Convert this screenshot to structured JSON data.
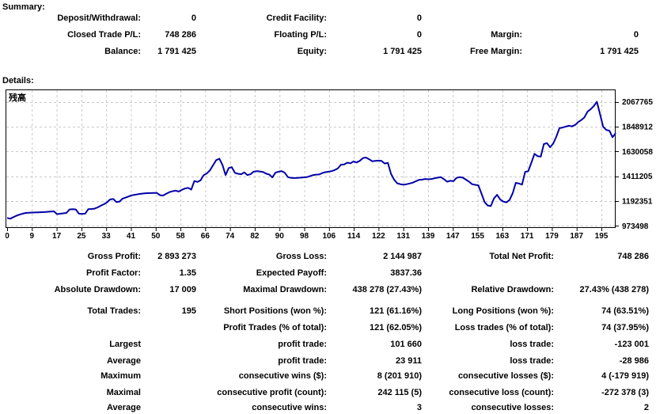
{
  "headings": {
    "summary": "Summary:",
    "details": "Details:"
  },
  "summary": {
    "rows": [
      {
        "c1l": "Deposit/Withdrawal:",
        "c1v": "0",
        "c2l": "Credit Facility:",
        "c2v": "0",
        "c3l": "",
        "c3v": ""
      },
      {
        "c1l": "Closed Trade P/L:",
        "c1v": "748 286",
        "c2l": "Floating P/L:",
        "c2v": "0",
        "c3l": "Margin:",
        "c3v": "0"
      },
      {
        "c1l": "Balance:",
        "c1v": "1 791 425",
        "c2l": "Equity:",
        "c2v": "1 791 425",
        "c3l": "Free Margin:",
        "c3v": "1 791 425"
      }
    ]
  },
  "details": {
    "rows": [
      {
        "c1l": "Gross Profit:",
        "c1v": "2 893 273",
        "c2l": "Gross Loss:",
        "c2v": "2 144 987",
        "c3l": "Total Net Profit:",
        "c3v": "748 286"
      },
      {
        "c1l": "Profit Factor:",
        "c1v": "1.35",
        "c2l": "Expected Payoff:",
        "c2v": "3837.36",
        "c3l": "",
        "c3v": ""
      },
      {
        "c1l": "Absolute Drawdown:",
        "c1v": "17 009",
        "c2l": "Maximal Drawdown:",
        "c2v": "438 278 (27.43%)",
        "c3l": "Relative Drawdown:",
        "c3v": "27.43% (438 278)"
      },
      {
        "c1l": "Total Trades:",
        "c1v": "195",
        "c2l": "Short Positions (won %):",
        "c2v": "121 (61.16%)",
        "c3l": "Long Positions (won %):",
        "c3v": "74 (63.51%)"
      },
      {
        "c1l": "",
        "c1v": "",
        "c2l": "Profit Trades (% of total):",
        "c2v": "121 (62.05%)",
        "c3l": "Loss trades (% of total):",
        "c3v": "74 (37.95%)"
      },
      {
        "c1l": "Largest",
        "c1v": "",
        "c2l": "profit trade:",
        "c2v": "101 660",
        "c3l": "loss trade:",
        "c3v": "-123 001"
      },
      {
        "c1l": "Average",
        "c1v": "",
        "c2l": "profit trade:",
        "c2v": "23 911",
        "c3l": "loss trade:",
        "c3v": "-28 986"
      },
      {
        "c1l": "Maximum",
        "c1v": "",
        "c2l": "consecutive wins ($):",
        "c2v": "8 (201 910)",
        "c3l": "consecutive losses ($):",
        "c3v": "4 (-179 919)"
      },
      {
        "c1l": "Maximal",
        "c1v": "",
        "c2l": "consecutive profit (count):",
        "c2v": "242 115 (5)",
        "c3l": "consecutive loss (count):",
        "c3v": "-272 378 (3)"
      },
      {
        "c1l": "Average",
        "c1v": "",
        "c2l": "consecutive wins:",
        "c2v": "3",
        "c3l": "consecutive losses:",
        "c3v": "2"
      }
    ]
  },
  "chart_data": {
    "type": "line",
    "title": "残高",
    "xlabel": "",
    "ylabel": "",
    "grid": true,
    "legend_position": "none",
    "line_color": "#0000a8",
    "grid_color": "#c8c8c8",
    "border_color": "#000000",
    "x_ticks": [
      0,
      9,
      17,
      25,
      33,
      41,
      50,
      58,
      66,
      74,
      82,
      90,
      98,
      106,
      114,
      122,
      131,
      139,
      147,
      155,
      163,
      171,
      179,
      187,
      195
    ],
    "y_ticks": [
      973498,
      1192351,
      1411205,
      1630058,
      1848912,
      2067765
    ],
    "xlim": [
      0,
      195
    ],
    "ylim": [
      954600,
      2176600
    ],
    "series": [
      {
        "name": "残高",
        "x": [
          0,
          1,
          2,
          3,
          4,
          5,
          6,
          8,
          10,
          12,
          14,
          15,
          16,
          17,
          18,
          19,
          20,
          21,
          22,
          23,
          24,
          25,
          26,
          27,
          28,
          29,
          30,
          31,
          32,
          33,
          34,
          35,
          36,
          37,
          38,
          39,
          40,
          41,
          42,
          43,
          44,
          45,
          47,
          48,
          49,
          50,
          51,
          52,
          53,
          54,
          55,
          56,
          57,
          58,
          59,
          60,
          61,
          62,
          63,
          64,
          65,
          66,
          67,
          68,
          69,
          70,
          71,
          72,
          73,
          74,
          75,
          76,
          77,
          78,
          79,
          80,
          81,
          82,
          83,
          84,
          85,
          86,
          87,
          88,
          89,
          90,
          91,
          92,
          93,
          95,
          96,
          97,
          98,
          99,
          100,
          101,
          102,
          103,
          104,
          105,
          106,
          107,
          108,
          109,
          110,
          111,
          112,
          113,
          114,
          115,
          116,
          117,
          118,
          119,
          120,
          121,
          122,
          123,
          124,
          125,
          126,
          127,
          128,
          129,
          130,
          131,
          132,
          133,
          134,
          135,
          136,
          137,
          138,
          139,
          140,
          141,
          142,
          143,
          144,
          145,
          146,
          147,
          148,
          149,
          150,
          151,
          152,
          153,
          154,
          155,
          156,
          157,
          158,
          159,
          160,
          161,
          162,
          163,
          164,
          165,
          166,
          167,
          168,
          169,
          170,
          171,
          172,
          173,
          174,
          175,
          176,
          177,
          178,
          179,
          180,
          181,
          182,
          183,
          184,
          185,
          186,
          187,
          188,
          189,
          190,
          191,
          192,
          193,
          194,
          195
        ],
        "y": [
          1043139,
          1036000,
          1050000,
          1063000,
          1073000,
          1081000,
          1087000,
          1091000,
          1093000,
          1095000,
          1099000,
          1101000,
          1077000,
          1080000,
          1084000,
          1087000,
          1118000,
          1121000,
          1118000,
          1081000,
          1078000,
          1081000,
          1120000,
          1122000,
          1125000,
          1136000,
          1151000,
          1164000,
          1181000,
          1206000,
          1211000,
          1184000,
          1188000,
          1214000,
          1223000,
          1233000,
          1243000,
          1248000,
          1253000,
          1257000,
          1260000,
          1262000,
          1263000,
          1263000,
          1244000,
          1241000,
          1256000,
          1271000,
          1279000,
          1284000,
          1276000,
          1291000,
          1303000,
          1309000,
          1293000,
          1369000,
          1361000,
          1376000,
          1421000,
          1436000,
          1463000,
          1509000,
          1553000,
          1566000,
          1511000,
          1421000,
          1483000,
          1491000,
          1441000,
          1433000,
          1429000,
          1445000,
          1421000,
          1429000,
          1451000,
          1456000,
          1453000,
          1449000,
          1434000,
          1426000,
          1401000,
          1443000,
          1451000,
          1457000,
          1441000,
          1403000,
          1397000,
          1395000,
          1397000,
          1401000,
          1403000,
          1411000,
          1421000,
          1425000,
          1427000,
          1439000,
          1447000,
          1451000,
          1456000,
          1466000,
          1481000,
          1513000,
          1515000,
          1531000,
          1525000,
          1541000,
          1533000,
          1547000,
          1571000,
          1576000,
          1561000,
          1543000,
          1547000,
          1549000,
          1546000,
          1523000,
          1529000,
          1433000,
          1381000,
          1349000,
          1341000,
          1337000,
          1341000,
          1347000,
          1355000,
          1367000,
          1379000,
          1381000,
          1387000,
          1384000,
          1387000,
          1393000,
          1399000,
          1403000,
          1385000,
          1363000,
          1371000,
          1367000,
          1397000,
          1403000,
          1399000,
          1381000,
          1363000,
          1341000,
          1335000,
          1331000,
          1259000,
          1183000,
          1153000,
          1149000,
          1215000,
          1247000,
          1207000,
          1187000,
          1181000,
          1201000,
          1261000,
          1353000,
          1347000,
          1337000,
          1449000,
          1457000,
          1531000,
          1609000,
          1587000,
          1585000,
          1695000,
          1703000,
          1667000,
          1699000,
          1761000,
          1835000,
          1841000,
          1849000,
          1857000,
          1851000,
          1863000,
          1889000,
          1907000,
          1931000,
          1981000,
          2003000,
          2031000,
          2067765,
          1959000,
          1848000,
          1820000,
          1813000,
          1755000,
          1791425
        ]
      }
    ]
  }
}
